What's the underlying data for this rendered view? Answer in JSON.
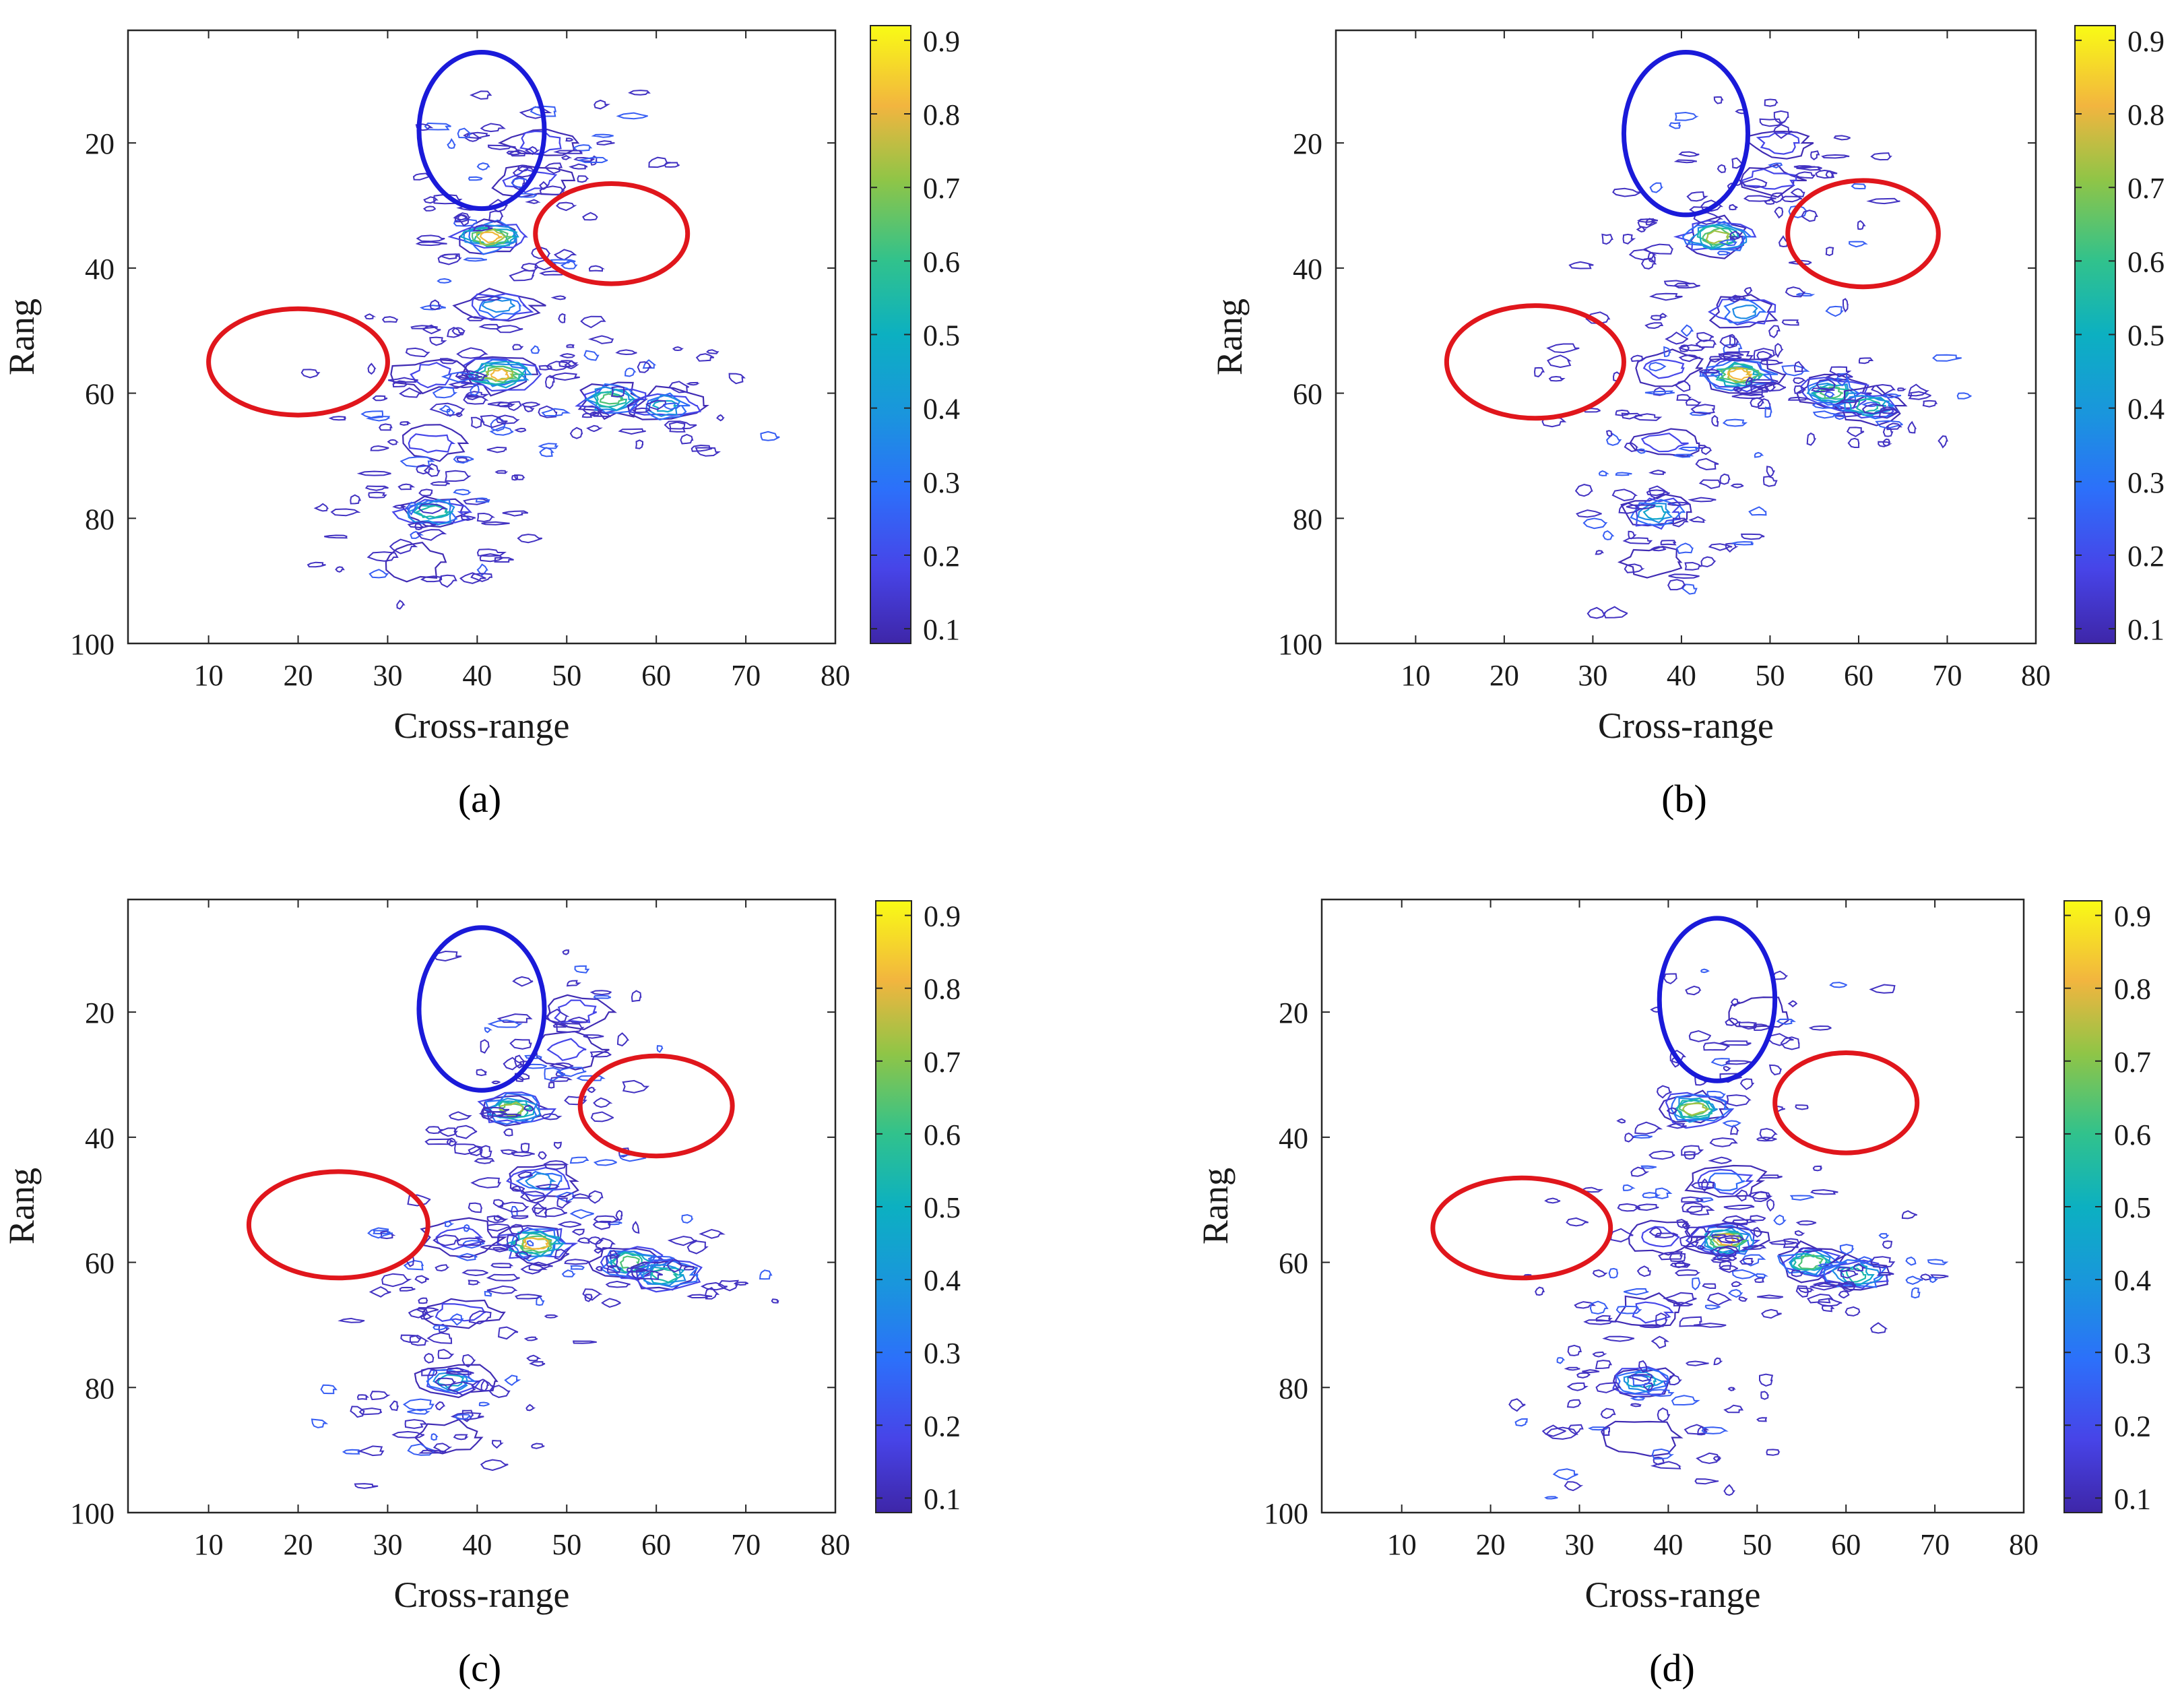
{
  "chart_data": [
    {
      "type": "contour",
      "caption": "(a)",
      "xlabel": "Cross-range",
      "ylabel": "Rang",
      "xlim": [
        1,
        80
      ],
      "ylim": [
        100,
        2
      ],
      "xticks": [
        10,
        20,
        30,
        40,
        50,
        60,
        70,
        80
      ],
      "yticks": [
        20,
        40,
        60,
        80,
        100
      ],
      "colorbar": {
        "min": 0.08,
        "max": 0.92,
        "ticks": [
          0.1,
          0.2,
          0.3,
          0.4,
          0.5,
          0.6,
          0.7,
          0.8,
          0.9
        ]
      },
      "peaks": [
        {
          "x": 41.5,
          "y": 35,
          "v": 0.92
        },
        {
          "x": 42.5,
          "y": 57,
          "v": 0.85
        },
        {
          "x": 55,
          "y": 61,
          "v": 0.75
        },
        {
          "x": 61,
          "y": 62,
          "v": 0.55
        },
        {
          "x": 35,
          "y": 79,
          "v": 0.62
        },
        {
          "x": 42.5,
          "y": 46,
          "v": 0.4
        },
        {
          "x": 35,
          "y": 68,
          "v": 0.3
        },
        {
          "x": 46,
          "y": 26,
          "v": 0.3
        },
        {
          "x": 47,
          "y": 20,
          "v": 0.25
        },
        {
          "x": 35,
          "y": 57,
          "v": 0.22
        },
        {
          "x": 33,
          "y": 87,
          "v": 0.15
        }
      ],
      "ellipses": [
        {
          "color": "#1a1ad9",
          "cx": 40.5,
          "cy": 18,
          "rx": 7,
          "ry": 12.5
        },
        {
          "color": "#e0161c",
          "cx": 55,
          "cy": 34.5,
          "rx": 8.5,
          "ry": 8
        },
        {
          "color": "#e0161c",
          "cx": 20,
          "cy": 55,
          "rx": 10,
          "ry": 8.5
        }
      ]
    },
    {
      "type": "contour",
      "caption": "(b)",
      "xlabel": "Cross-range",
      "ylabel": "Rang",
      "xlim": [
        1,
        80
      ],
      "ylim": [
        100,
        2
      ],
      "xticks": [
        10,
        20,
        30,
        40,
        50,
        60,
        70,
        80
      ],
      "yticks": [
        20,
        40,
        60,
        80,
        100
      ],
      "colorbar": {
        "min": 0.08,
        "max": 0.92,
        "ticks": [
          0.1,
          0.2,
          0.3,
          0.4,
          0.5,
          0.6,
          0.7,
          0.8,
          0.9
        ]
      },
      "peaks": [
        {
          "x": 44,
          "y": 35,
          "v": 0.8
        },
        {
          "x": 46.5,
          "y": 57,
          "v": 0.9
        },
        {
          "x": 57,
          "y": 60,
          "v": 0.7
        },
        {
          "x": 61,
          "y": 62,
          "v": 0.6
        },
        {
          "x": 37,
          "y": 79,
          "v": 0.5
        },
        {
          "x": 47,
          "y": 47,
          "v": 0.4
        },
        {
          "x": 38,
          "y": 68,
          "v": 0.3
        },
        {
          "x": 50,
          "y": 26,
          "v": 0.3
        },
        {
          "x": 51,
          "y": 20,
          "v": 0.22
        },
        {
          "x": 38,
          "y": 56,
          "v": 0.3
        },
        {
          "x": 37,
          "y": 87,
          "v": 0.15
        }
      ],
      "ellipses": [
        {
          "color": "#1a1ad9",
          "cx": 40.5,
          "cy": 18.5,
          "rx": 7,
          "ry": 13
        },
        {
          "color": "#e0161c",
          "cx": 60.5,
          "cy": 34.5,
          "rx": 8.5,
          "ry": 8.5
        },
        {
          "color": "#e0161c",
          "cx": 23.5,
          "cy": 55,
          "rx": 10,
          "ry": 9
        }
      ]
    },
    {
      "type": "contour",
      "caption": "(c)",
      "xlabel": "Cross-range",
      "ylabel": "Rang",
      "xlim": [
        1,
        80
      ],
      "ylim": [
        100,
        2
      ],
      "xticks": [
        10,
        20,
        30,
        40,
        50,
        60,
        70,
        80
      ],
      "yticks": [
        20,
        40,
        60,
        80,
        100
      ],
      "colorbar": {
        "min": 0.08,
        "max": 0.92,
        "ticks": [
          0.1,
          0.2,
          0.3,
          0.4,
          0.5,
          0.6,
          0.7,
          0.8,
          0.9
        ]
      },
      "peaks": [
        {
          "x": 44,
          "y": 35.5,
          "v": 0.8
        },
        {
          "x": 46.5,
          "y": 57,
          "v": 0.85
        },
        {
          "x": 57,
          "y": 60,
          "v": 0.75
        },
        {
          "x": 61,
          "y": 62,
          "v": 0.62
        },
        {
          "x": 37,
          "y": 79,
          "v": 0.5
        },
        {
          "x": 47,
          "y": 47,
          "v": 0.45
        },
        {
          "x": 38,
          "y": 68,
          "v": 0.3
        },
        {
          "x": 50,
          "y": 26,
          "v": 0.3
        },
        {
          "x": 51,
          "y": 20,
          "v": 0.22
        },
        {
          "x": 38,
          "y": 56,
          "v": 0.3
        },
        {
          "x": 37,
          "y": 88,
          "v": 0.15
        }
      ],
      "ellipses": [
        {
          "color": "#1a1ad9",
          "cx": 40.5,
          "cy": 19.5,
          "rx": 7,
          "ry": 13
        },
        {
          "color": "#e0161c",
          "cx": 60,
          "cy": 35,
          "rx": 8.5,
          "ry": 8
        },
        {
          "color": "#e0161c",
          "cx": 24.5,
          "cy": 54,
          "rx": 10,
          "ry": 8.5
        }
      ]
    },
    {
      "type": "contour",
      "caption": "(d)",
      "xlabel": "Cross-range",
      "ylabel": "Rang",
      "xlim": [
        1,
        80
      ],
      "ylim": [
        100,
        2
      ],
      "xticks": [
        10,
        20,
        30,
        40,
        50,
        60,
        70,
        80
      ],
      "yticks": [
        20,
        40,
        60,
        80,
        100
      ],
      "colorbar": {
        "min": 0.08,
        "max": 0.92,
        "ticks": [
          0.1,
          0.2,
          0.3,
          0.4,
          0.5,
          0.6,
          0.7,
          0.8,
          0.9
        ]
      },
      "peaks": [
        {
          "x": 43,
          "y": 35.5,
          "v": 0.8
        },
        {
          "x": 46.5,
          "y": 56.5,
          "v": 0.88
        },
        {
          "x": 56,
          "y": 60,
          "v": 0.7
        },
        {
          "x": 61,
          "y": 62,
          "v": 0.6
        },
        {
          "x": 37,
          "y": 79,
          "v": 0.5
        },
        {
          "x": 46.5,
          "y": 47,
          "v": 0.35
        },
        {
          "x": 38,
          "y": 68,
          "v": 0.3
        },
        {
          "x": 50,
          "y": 20,
          "v": 0.2
        },
        {
          "x": 39,
          "y": 56,
          "v": 0.3
        },
        {
          "x": 37,
          "y": 88,
          "v": 0.15
        }
      ],
      "ellipses": [
        {
          "color": "#1a1ad9",
          "cx": 45.5,
          "cy": 18,
          "rx": 6.5,
          "ry": 13
        },
        {
          "color": "#e0161c",
          "cx": 60,
          "cy": 34.5,
          "rx": 8,
          "ry": 8
        },
        {
          "color": "#e0161c",
          "cx": 23.5,
          "cy": 54.5,
          "rx": 10,
          "ry": 8
        }
      ]
    }
  ]
}
